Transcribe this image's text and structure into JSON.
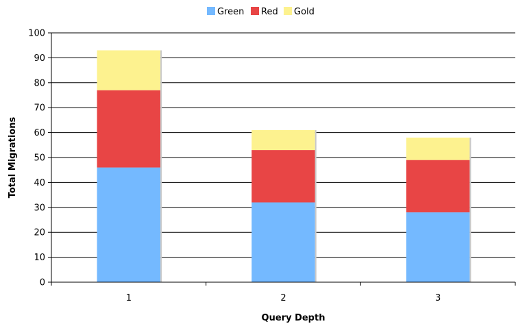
{
  "chart_data": {
    "type": "bar",
    "stacked": true,
    "title": "",
    "xlabel": "Query Depth",
    "ylabel": "Total Migrations",
    "categories": [
      "1",
      "2",
      "3"
    ],
    "series": [
      {
        "name": "Green",
        "color": "#74b9ff",
        "values": [
          46,
          32,
          28
        ]
      },
      {
        "name": "Red",
        "color": "#e84545",
        "values": [
          31,
          21,
          21
        ]
      },
      {
        "name": "Gold",
        "color": "#fdf28f",
        "values": [
          16,
          8,
          9
        ]
      }
    ],
    "ylim": [
      0,
      100
    ],
    "yticks": [
      "0",
      "10",
      "20",
      "30",
      "40",
      "50",
      "60",
      "70",
      "80",
      "90",
      "100"
    ],
    "grid": true,
    "legend_position": "top-center"
  }
}
